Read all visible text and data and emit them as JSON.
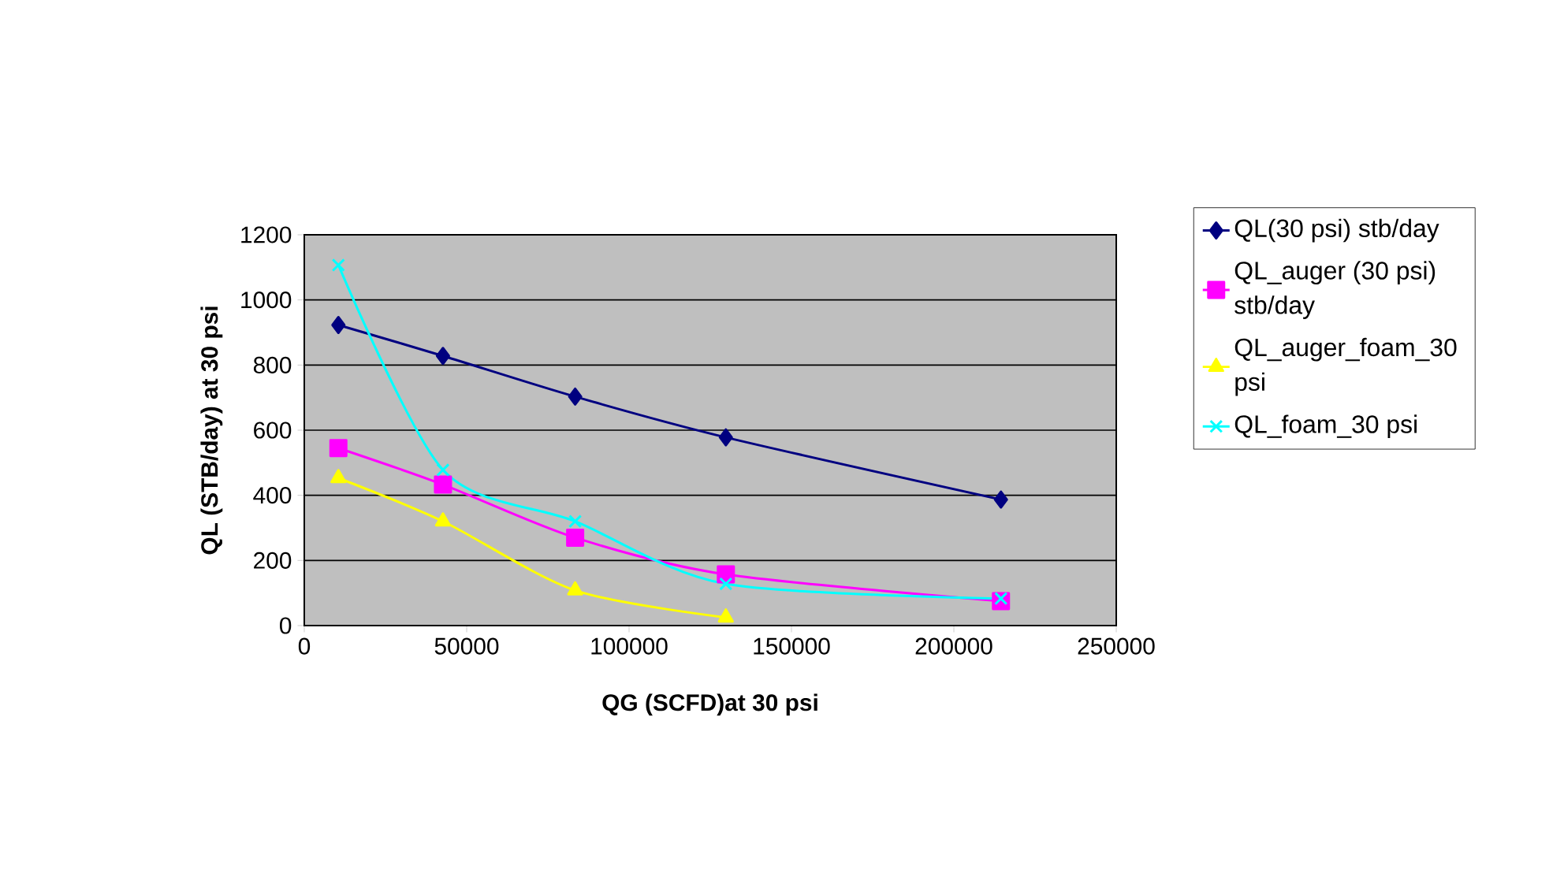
{
  "chart_data": {
    "type": "line",
    "xlabel": "QG (SCFD)at 30 psi",
    "ylabel": "QL (STB/day) at 30 psi",
    "x": [
      10500,
      42700,
      83400,
      129800,
      214500
    ],
    "series": [
      {
        "name": "QL(30 psi) stb/day",
        "color": "#000080",
        "marker": "diamond",
        "values": [
          923,
          828,
          703,
          578,
          387
        ]
      },
      {
        "name": "QL_auger (30 psi) stb/day",
        "color": "#ff00ff",
        "marker": "square",
        "values": [
          545,
          433,
          270,
          157,
          75
        ]
      },
      {
        "name": "QL_auger_foam_30 psi",
        "color": "#ffff00",
        "marker": "triangle",
        "values": [
          453,
          320,
          108,
          25,
          null
        ]
      },
      {
        "name": "QL_foam_30 psi",
        "color": "#00ffff",
        "marker": "cross",
        "values": [
          1107,
          478,
          320,
          128,
          83
        ]
      }
    ],
    "xlim": [
      0,
      250000
    ],
    "xticks": [
      0,
      50000,
      100000,
      150000,
      200000,
      250000
    ],
    "ylim": [
      0,
      1200
    ],
    "yticks": [
      0,
      200,
      400,
      600,
      800,
      1000,
      1200
    ],
    "grid": "y",
    "legend": "right",
    "line_style": "solid"
  }
}
